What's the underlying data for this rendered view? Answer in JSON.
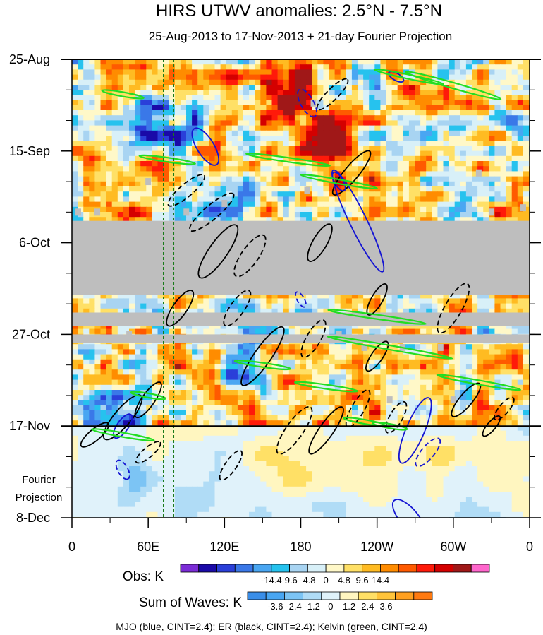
{
  "chart_data": {
    "type": "heatmap",
    "title": "HIRS UTWV anomalies: 2.5°N - 7.5°N",
    "subtitle": "25-Aug-2013 to 17-Nov-2013 + 21-day Fourier Projection",
    "x_ticks": [
      "0",
      "60E",
      "120E",
      "180",
      "120W",
      "60W",
      "0"
    ],
    "x_tick_lon": [
      0,
      60,
      120,
      180,
      240,
      300,
      360
    ],
    "y_ticks": [
      "25-Aug",
      "15-Sep",
      "6-Oct",
      "27-Oct",
      "17-Nov",
      "8-Dec"
    ],
    "y_tick_day": [
      0,
      21,
      42,
      63,
      84,
      105
    ],
    "xlim": [
      0,
      360
    ],
    "ylim_days": [
      0,
      105
    ],
    "projection_label": [
      "Fourier",
      "Projection"
    ],
    "projection_start_day": 84,
    "missing_data_days": [
      [
        37,
        54
      ],
      [
        58,
        61
      ],
      [
        63,
        65
      ]
    ],
    "reference_lines_lon": [
      72,
      80
    ],
    "obs_colorbar": {
      "label": "Obs: K",
      "tick_labels": [
        "-14.4",
        "-9.6",
        "-4.8",
        "0",
        "4.8",
        "9.6",
        "14.4"
      ],
      "colors": [
        "#7b2cd6",
        "#1a0aa8",
        "#2a3fd9",
        "#3a78e8",
        "#49a6f2",
        "#26c2ee",
        "#a8d4f2",
        "#d8f0f8",
        "#fff8c8",
        "#ffe066",
        "#ffbb22",
        "#ff8c00",
        "#ff5a00",
        "#ff1a0a",
        "#d40000",
        "#a01818",
        "#ff66cc"
      ]
    },
    "waves_colorbar": {
      "label": "Sum of Waves: K",
      "tick_labels": [
        "-3.6",
        "-2.4",
        "-1.2",
        "0",
        "1.2",
        "2.4",
        "3.6"
      ],
      "colors": [
        "#3a8ee8",
        "#49a6f2",
        "#7cc4f4",
        "#b0dcf6",
        "#e0f2fa",
        "#fff6c0",
        "#ffe066",
        "#ffc43a",
        "#ffa020",
        "#ff7a10"
      ]
    },
    "footer": "MJO (blue, CINT=2.4); ER (black, CINT=2.4); Kelvin (green, CINT=2.4)",
    "wave_colors": {
      "mjo": "#1414d2",
      "er": "#000000",
      "kelvin": "#22dd22",
      "reference": "#1a7a1a",
      "missing": "#bebebe"
    }
  }
}
